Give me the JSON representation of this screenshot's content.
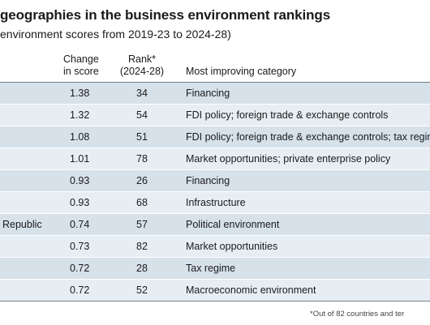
{
  "title": "geographies in the business environment rankings",
  "subtitle": "environment scores from 2019-23 to 2024-28)",
  "headers": {
    "change": [
      "Change",
      "in score"
    ],
    "rank": [
      "Rank*",
      "(2024-28)"
    ],
    "category": "Most improving category"
  },
  "rows": [
    {
      "geography": "",
      "change": "1.38",
      "rank": "34",
      "category": "Financing"
    },
    {
      "geography": "",
      "change": "1.32",
      "rank": "54",
      "category": "FDI policy; foreign trade & exchange controls"
    },
    {
      "geography": "",
      "change": "1.08",
      "rank": "51",
      "category": "FDI policy; foreign trade & exchange controls; tax regim"
    },
    {
      "geography": "",
      "change": "1.01",
      "rank": "78",
      "category": "Market opportunities; private enterprise policy"
    },
    {
      "geography": "",
      "change": "0.93",
      "rank": "26",
      "category": "Financing"
    },
    {
      "geography": "",
      "change": "0.93",
      "rank": "68",
      "category": "Infrastructure"
    },
    {
      "geography": "Republic",
      "change": "0.74",
      "rank": "57",
      "category": "Political environment"
    },
    {
      "geography": "",
      "change": "0.73",
      "rank": "82",
      "category": "Market opportunities"
    },
    {
      "geography": "",
      "change": "0.72",
      "rank": "28",
      "category": "Tax regime"
    },
    {
      "geography": "",
      "change": "0.72",
      "rank": "52",
      "category": "Macroeconomic environment"
    }
  ],
  "footnote": "*Out of 82 countries and ter"
}
